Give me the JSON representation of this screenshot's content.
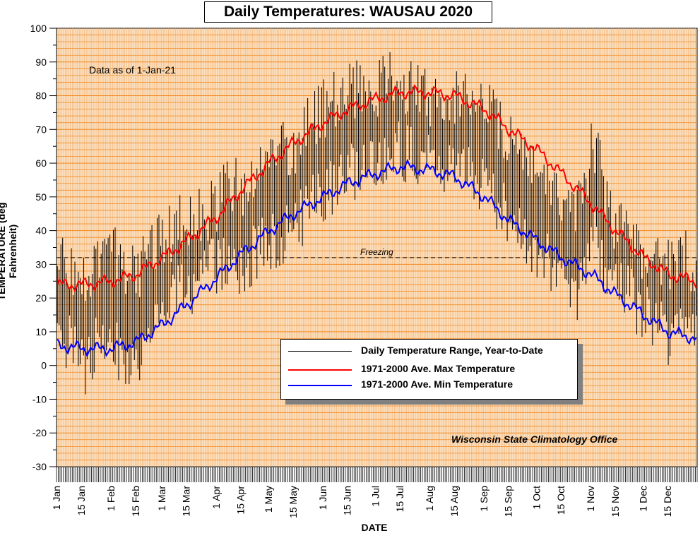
{
  "chart_data": {
    "type": "line",
    "title": "Daily Temperatures: WAUSAU 2020",
    "xlabel": "DATE",
    "ylabel": "TEMPERATURE (deg Fahrenheit)",
    "ylim": [
      -30,
      100
    ],
    "yticks": [
      -30,
      -20,
      -10,
      0,
      10,
      20,
      30,
      40,
      50,
      60,
      70,
      80,
      90,
      100
    ],
    "xticks": [
      "1 Jan",
      "15 Jan",
      "1 Feb",
      "15 Feb",
      "1 Mar",
      "15 Mar",
      "1 Apr",
      "15 Apr",
      "1 May",
      "15 May",
      "1 Jun",
      "15 Jun",
      "1 Jul",
      "15 Jul",
      "1 Aug",
      "15 Aug",
      "1 Sep",
      "15 Sep",
      "1 Oct",
      "15 Oct",
      "1 Nov",
      "15 Nov",
      "1 Dec",
      "15 Dec"
    ],
    "xtick_days": [
      0,
      14,
      31,
      45,
      60,
      74,
      91,
      105,
      121,
      135,
      152,
      166,
      182,
      196,
      213,
      227,
      244,
      258,
      274,
      288,
      305,
      319,
      335,
      349
    ],
    "year_days": 366,
    "grid": true,
    "legend_position": "bottom-center",
    "annotations": {
      "freezing_label": "Freezing",
      "freezing_value": 32,
      "data_note": "Data as of 1-Jan-21",
      "source": "Wisconsin State Climatology Office"
    },
    "series": [
      {
        "name": "Daily Temperature Range, Year-to-Date",
        "color": "#000000",
        "kind": "range",
        "anchors_high": [
          [
            0,
            32
          ],
          [
            10,
            28
          ],
          [
            20,
            27
          ],
          [
            27,
            34
          ],
          [
            35,
            32
          ],
          [
            40,
            28
          ],
          [
            46,
            26
          ],
          [
            50,
            32
          ],
          [
            55,
            38
          ],
          [
            60,
            36
          ],
          [
            66,
            40
          ],
          [
            72,
            44
          ],
          [
            80,
            45
          ],
          [
            86,
            46
          ],
          [
            92,
            48
          ],
          [
            98,
            54
          ],
          [
            104,
            52
          ],
          [
            110,
            55
          ],
          [
            116,
            58
          ],
          [
            122,
            62
          ],
          [
            128,
            64
          ],
          [
            134,
            62
          ],
          [
            140,
            70
          ],
          [
            146,
            73
          ],
          [
            152,
            76
          ],
          [
            158,
            79
          ],
          [
            164,
            80
          ],
          [
            170,
            82
          ],
          [
            176,
            81
          ],
          [
            182,
            82
          ],
          [
            188,
            85
          ],
          [
            194,
            84
          ],
          [
            200,
            82
          ],
          [
            206,
            81
          ],
          [
            212,
            80
          ],
          [
            218,
            79
          ],
          [
            224,
            80
          ],
          [
            230,
            81
          ],
          [
            236,
            82
          ],
          [
            242,
            78
          ],
          [
            248,
            74
          ],
          [
            254,
            70
          ],
          [
            260,
            66
          ],
          [
            266,
            63
          ],
          [
            272,
            58
          ],
          [
            278,
            55
          ],
          [
            284,
            50
          ],
          [
            290,
            47
          ],
          [
            296,
            44
          ],
          [
            302,
            55
          ],
          [
            306,
            66
          ],
          [
            309,
            64
          ],
          [
            313,
            48
          ],
          [
            318,
            42
          ],
          [
            322,
            44
          ],
          [
            328,
            40
          ],
          [
            334,
            34
          ],
          [
            340,
            36
          ],
          [
            346,
            30
          ],
          [
            352,
            28
          ],
          [
            358,
            33
          ],
          [
            362,
            30
          ],
          [
            365,
            25
          ]
        ],
        "anchors_low": [
          [
            0,
            8
          ],
          [
            10,
            6
          ],
          [
            16,
            -2
          ],
          [
            22,
            6
          ],
          [
            28,
            10
          ],
          [
            34,
            4
          ],
          [
            40,
            0
          ],
          [
            44,
            -2
          ],
          [
            48,
            6
          ],
          [
            54,
            16
          ],
          [
            60,
            18
          ],
          [
            66,
            20
          ],
          [
            72,
            22
          ],
          [
            80,
            25
          ],
          [
            86,
            28
          ],
          [
            92,
            30
          ],
          [
            98,
            30
          ],
          [
            104,
            28
          ],
          [
            110,
            32
          ],
          [
            116,
            35
          ],
          [
            122,
            36
          ],
          [
            128,
            38
          ],
          [
            134,
            42
          ],
          [
            140,
            44
          ],
          [
            146,
            48
          ],
          [
            152,
            50
          ],
          [
            158,
            53
          ],
          [
            164,
            56
          ],
          [
            170,
            58
          ],
          [
            176,
            60
          ],
          [
            182,
            60
          ],
          [
            188,
            62
          ],
          [
            194,
            64
          ],
          [
            200,
            63
          ],
          [
            206,
            60
          ],
          [
            212,
            60
          ],
          [
            218,
            58
          ],
          [
            224,
            57
          ],
          [
            230,
            58
          ],
          [
            236,
            57
          ],
          [
            242,
            53
          ],
          [
            248,
            50
          ],
          [
            254,
            46
          ],
          [
            260,
            42
          ],
          [
            266,
            38
          ],
          [
            272,
            34
          ],
          [
            278,
            32
          ],
          [
            284,
            28
          ],
          [
            290,
            24
          ],
          [
            296,
            20
          ],
          [
            302,
            30
          ],
          [
            306,
            38
          ],
          [
            309,
            36
          ],
          [
            313,
            26
          ],
          [
            318,
            22
          ],
          [
            322,
            24
          ],
          [
            328,
            20
          ],
          [
            334,
            16
          ],
          [
            340,
            14
          ],
          [
            346,
            10
          ],
          [
            352,
            8
          ],
          [
            358,
            10
          ],
          [
            362,
            8
          ],
          [
            365,
            6
          ]
        ]
      },
      {
        "name": "1971-2000 Ave. Max Temperature",
        "color": "#ff0000",
        "anchors": [
          [
            0,
            24
          ],
          [
            15,
            24
          ],
          [
            31,
            25
          ],
          [
            45,
            27
          ],
          [
            60,
            32
          ],
          [
            74,
            37
          ],
          [
            91,
            44
          ],
          [
            105,
            52
          ],
          [
            121,
            60
          ],
          [
            135,
            66
          ],
          [
            152,
            72
          ],
          [
            166,
            76
          ],
          [
            182,
            79
          ],
          [
            196,
            81
          ],
          [
            213,
            81
          ],
          [
            227,
            80
          ],
          [
            244,
            76
          ],
          [
            258,
            70
          ],
          [
            274,
            64
          ],
          [
            288,
            57
          ],
          [
            305,
            48
          ],
          [
            319,
            40
          ],
          [
            335,
            32
          ],
          [
            349,
            27
          ],
          [
            365,
            25
          ]
        ]
      },
      {
        "name": "1971-2000 Ave. Min Temperature",
        "color": "#0000ff",
        "anchors": [
          [
            0,
            6
          ],
          [
            15,
            5
          ],
          [
            31,
            5
          ],
          [
            45,
            7
          ],
          [
            60,
            12
          ],
          [
            74,
            18
          ],
          [
            91,
            26
          ],
          [
            105,
            33
          ],
          [
            121,
            40
          ],
          [
            135,
            45
          ],
          [
            152,
            50
          ],
          [
            166,
            54
          ],
          [
            182,
            57
          ],
          [
            196,
            59
          ],
          [
            213,
            58
          ],
          [
            227,
            56
          ],
          [
            244,
            50
          ],
          [
            258,
            43
          ],
          [
            274,
            37
          ],
          [
            288,
            32
          ],
          [
            305,
            27
          ],
          [
            319,
            21
          ],
          [
            335,
            15
          ],
          [
            349,
            10
          ],
          [
            365,
            8
          ]
        ]
      }
    ]
  }
}
